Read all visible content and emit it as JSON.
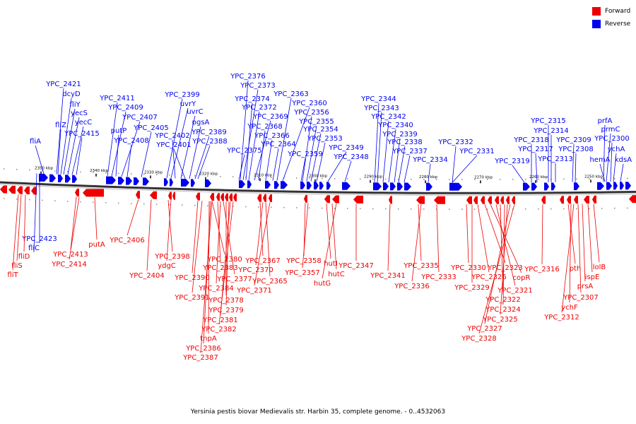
{
  "caption": "Yersinia pestis biovar Medievalis str. Harbin 35, complete genome. - 0..4532063",
  "legend": {
    "forward_label": "Forward",
    "reverse_label": "Reverse",
    "forward_color": "#ee0000",
    "reverse_color": "#0000ee"
  },
  "scale_ticks": [
    "2350 kbp",
    "2340 kbp",
    "2330 kbp",
    "2320 kbp",
    "2310 kbp",
    "2300 kbp",
    "2290 kbp",
    "2280 kbp",
    "2270 kbp",
    "2260 kbp",
    "2250 kbp"
  ],
  "reverse_genes": [
    "YPC_2421",
    "fliA",
    "fliZ",
    "dcyD",
    "fliY",
    "yecS",
    "yecC",
    "YPC_2415",
    "YPC_2411",
    "YPC_2409",
    "putP",
    "YPC_2407",
    "YPC_2408",
    "YPC_2405",
    "YPC_2399",
    "uvrY",
    "YPC_2402",
    "uvrC",
    "YPC_2401",
    "pgsA",
    "YPC_2389",
    "YPC_2388",
    "YPC_2376",
    "YPC_2373",
    "YPC_2374",
    "YPC_2372",
    "YPC_2375",
    "YPC_2369",
    "YPC_2368",
    "YPC_2366",
    "YPC_2364",
    "YPC_2363",
    "YPC_2360",
    "YPC_2356",
    "YPC_2355",
    "YPC_2354",
    "YPC_2353",
    "YPC_2359",
    "YPC_2349",
    "YPC_2348",
    "YPC_2344",
    "YPC_2343",
    "YPC_2342",
    "YPC_2340",
    "YPC_2339",
    "YPC_2338",
    "YPC_2337",
    "YPC_2334",
    "YPC_2332",
    "YPC_2331",
    "YPC_2319",
    "YPC_2318",
    "YPC_2317",
    "YPC_2315",
    "YPC_2314",
    "YPC_2313",
    "YPC_2309",
    "YPC_2308",
    "prfA",
    "prmC",
    "YPC_2300",
    "hemA",
    "ychA",
    "kdsA",
    "YPC_2423",
    "fliC"
  ],
  "forward_genes": [
    "fliD",
    "fliS",
    "fliT",
    "YPC_2413",
    "YPC_2414",
    "putA",
    "YPC_2406",
    "YPC_2404",
    "YPC_2398",
    "ydgC",
    "YPC_2390",
    "YPC_2391",
    "YPC_2380",
    "YPC_2383",
    "YPC_2377",
    "YPC_2384",
    "YPC_2378",
    "YPC_2379",
    "YPC_2381",
    "YPC_2382",
    "tnpA",
    "YPC_2386",
    "YPC_2387",
    "YPC_2367",
    "YPC_2370",
    "YPC_2365",
    "YPC_2371",
    "YPC_2358",
    "YPC_2357",
    "hutI",
    "hutC",
    "hutG",
    "YPC_2347",
    "YPC_2341",
    "YPC_2335",
    "YPC_2336",
    "YPC_2333",
    "YPC_2330",
    "YPC_2329",
    "YPC_2326",
    "YPC_2323",
    "copR",
    "YPC_2321",
    "YPC_2322",
    "YPC_2324",
    "YPC_2325",
    "YPC_2327",
    "YPC_2328",
    "YPC_2316",
    "pth",
    "lolB",
    "ispE",
    "prsA",
    "YPC_2307",
    "ychF",
    "YPC_2312"
  ]
}
